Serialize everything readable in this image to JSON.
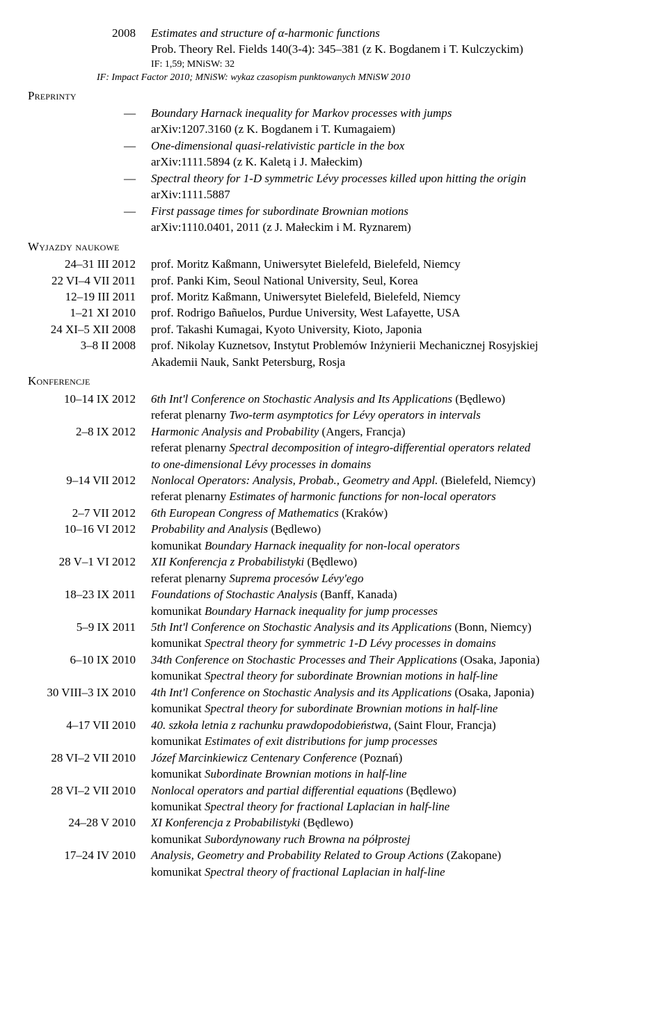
{
  "pub": {
    "year": "2008",
    "title": "Estimates and structure of α-harmonic functions",
    "ref": "Prob. Theory Rel. Fields 140(3-4): 345–381 (z K. Bogdanem i T. Kulczyckim)",
    "if": "IF: 1,59; MNiSW: 32",
    "note": "IF: Impact Factor 2010; MNiSW: wykaz czasopism punktowanych MNiSW 2010"
  },
  "sections": {
    "preprints": "Preprinty",
    "trips": "Wyjazdy naukowe",
    "conf": "Konferencje"
  },
  "preprints": [
    {
      "dash": "—",
      "title": "Boundary Harnack inequality for Markov processes with jumps",
      "sub": "arXiv:1207.3160 (z K. Bogdanem i T. Kumagaiem)"
    },
    {
      "dash": "—",
      "title": "One-dimensional quasi-relativistic particle in the box",
      "sub": "arXiv:1111.5894 (z K. Kaletą i J. Małeckim)"
    },
    {
      "dash": "—",
      "title": "Spectral theory for 1-D symmetric Lévy processes killed upon hitting the origin",
      "sub": "arXiv:1111.5887"
    },
    {
      "dash": "—",
      "title": "First passage times for subordinate Brownian motions",
      "sub": "arXiv:1110.0401, 2011 (z J. Małeckim i M. Ryznarem)"
    }
  ],
  "trips": [
    {
      "date": "24–31 III 2012",
      "who": "prof. Moritz Kaßmann, Uniwersytet Bielefeld, Bielefeld, Niemcy"
    },
    {
      "date": "22 VI–4 VII 2011",
      "who": "prof. Panki Kim, Seoul National University, Seul, Korea"
    },
    {
      "date": "12–19 III 2011",
      "who": "prof. Moritz Kaßmann, Uniwersytet Bielefeld, Bielefeld, Niemcy"
    },
    {
      "date": "1–21 XI 2010",
      "who": "prof. Rodrigo Bañuelos, Purdue University, West Lafayette, USA"
    },
    {
      "date": "24 XI–5 XII 2008",
      "who": "prof. Takashi Kumagai, Kyoto University, Kioto, Japonia"
    },
    {
      "date": "3–8 II 2008",
      "who": "prof. Nikolay Kuznetsov, Instytut Problemów Inżynierii Mechanicznej Rosyjskiej",
      "who2": "Akademii Nauk, Sankt Petersburg, Rosja"
    }
  ],
  "conf": [
    {
      "date": "10–14 IX 2012",
      "l": [
        {
          "t": "it",
          "v": "6th Int'l Conference on Stochastic Analysis and Its Applications"
        },
        {
          "t": "n",
          "v": " (Będlewo)"
        }
      ],
      "l2": [
        {
          "t": "n",
          "v": "referat plenarny "
        },
        {
          "t": "it",
          "v": "Two-term asymptotics for Lévy operators in intervals"
        }
      ]
    },
    {
      "date": "2–8 IX 2012",
      "l": [
        {
          "t": "it",
          "v": "Harmonic Analysis and Probability"
        },
        {
          "t": "n",
          "v": " (Angers, Francja)"
        }
      ],
      "l2": [
        {
          "t": "n",
          "v": "referat plenarny "
        },
        {
          "t": "it",
          "v": "Spectral decomposition of integro-differential operators related"
        }
      ],
      "l3": [
        {
          "t": "it",
          "v": "to one-dimensional Lévy processes in domains"
        }
      ]
    },
    {
      "date": "9–14 VII 2012",
      "l": [
        {
          "t": "it",
          "v": "Nonlocal Operators: Analysis, Probab., Geometry and Appl."
        },
        {
          "t": "n",
          "v": " (Bielefeld, Niemcy)"
        }
      ],
      "l2": [
        {
          "t": "n",
          "v": "referat plenarny "
        },
        {
          "t": "it",
          "v": "Estimates of harmonic functions for non-local operators"
        }
      ]
    },
    {
      "date": "2–7 VII 2012",
      "l": [
        {
          "t": "it",
          "v": "6th European Congress of Mathematics"
        },
        {
          "t": "n",
          "v": " (Kraków)"
        }
      ]
    },
    {
      "date": "10–16 VI 2012",
      "l": [
        {
          "t": "it",
          "v": "Probability and Analysis"
        },
        {
          "t": "n",
          "v": " (Będlewo)"
        }
      ],
      "l2": [
        {
          "t": "n",
          "v": "komunikat "
        },
        {
          "t": "it",
          "v": "Boundary Harnack inequality for non-local operators"
        }
      ]
    },
    {
      "date": "28 V–1 VI 2012",
      "l": [
        {
          "t": "it",
          "v": "XII Konferencja z Probabilistyki"
        },
        {
          "t": "n",
          "v": " (Będlewo)"
        }
      ],
      "l2": [
        {
          "t": "n",
          "v": "referat plenarny "
        },
        {
          "t": "it",
          "v": "Suprema procesów Lévy'ego"
        }
      ]
    },
    {
      "date": "18–23 IX 2011",
      "l": [
        {
          "t": "it",
          "v": "Foundations of Stochastic Analysis"
        },
        {
          "t": "n",
          "v": " (Banff, Kanada)"
        }
      ],
      "l2": [
        {
          "t": "n",
          "v": "komunikat "
        },
        {
          "t": "it",
          "v": "Boundary Harnack inequality for jump processes"
        }
      ]
    },
    {
      "date": "5–9 IX 2011",
      "l": [
        {
          "t": "it",
          "v": "5th Int'l Conference on Stochastic Analysis and its Applications"
        },
        {
          "t": "n",
          "v": " (Bonn, Niemcy)"
        }
      ],
      "l2": [
        {
          "t": "n",
          "v": "komunikat "
        },
        {
          "t": "it",
          "v": "Spectral theory for symmetric 1-D Lévy processes in domains"
        }
      ]
    },
    {
      "date": "6–10 IX 2010",
      "l": [
        {
          "t": "it",
          "v": "34th Conference on Stochastic Processes and Their Applications"
        },
        {
          "t": "n",
          "v": " (Osaka, Japonia)"
        }
      ],
      "l2": [
        {
          "t": "n",
          "v": "komunikat "
        },
        {
          "t": "it",
          "v": "Spectral theory for subordinate Brownian motions in half-line"
        }
      ]
    },
    {
      "date": "30 VIII–3 IX 2010",
      "l": [
        {
          "t": "it",
          "v": "4th Int'l Conference on Stochastic Analysis and its Applications"
        },
        {
          "t": "n",
          "v": " (Osaka, Japonia)"
        }
      ],
      "l2": [
        {
          "t": "n",
          "v": "komunikat "
        },
        {
          "t": "it",
          "v": "Spectral theory for subordinate Brownian motions in half-line"
        }
      ]
    },
    {
      "date": "4–17 VII 2010",
      "l": [
        {
          "t": "it",
          "v": "40. szkoła letnia z rachunku prawdopodobieństwa"
        },
        {
          "t": "n",
          "v": ", (Saint Flour, Francja)"
        }
      ],
      "l2": [
        {
          "t": "n",
          "v": "komunikat "
        },
        {
          "t": "it",
          "v": "Estimates of exit distributions for jump processes"
        }
      ]
    },
    {
      "date": "28 VI–2 VII 2010",
      "l": [
        {
          "t": "it",
          "v": "Józef Marcinkiewicz Centenary Conference"
        },
        {
          "t": "n",
          "v": " (Poznań)"
        }
      ],
      "l2": [
        {
          "t": "n",
          "v": "komunikat "
        },
        {
          "t": "it",
          "v": "Subordinate Brownian motions in half-line"
        }
      ]
    },
    {
      "date": "28 VI–2 VII 2010",
      "l": [
        {
          "t": "it",
          "v": "Nonlocal operators and partial differential equations"
        },
        {
          "t": "n",
          "v": " (Będlewo)"
        }
      ],
      "l2": [
        {
          "t": "n",
          "v": "komunikat "
        },
        {
          "t": "it",
          "v": "Spectral theory for fractional Laplacian in half-line"
        }
      ]
    },
    {
      "date": "24–28 V 2010",
      "l": [
        {
          "t": "it",
          "v": "XI Konferencja z Probabilistyki"
        },
        {
          "t": "n",
          "v": " (Będlewo)"
        }
      ],
      "l2": [
        {
          "t": "n",
          "v": "komunikat "
        },
        {
          "t": "it",
          "v": "Subordynowany ruch Browna na półprostej"
        }
      ]
    },
    {
      "date": "17–24 IV 2010",
      "l": [
        {
          "t": "it",
          "v": "Analysis, Geometry and Probability Related to Group Actions"
        },
        {
          "t": "n",
          "v": " (Zakopane)"
        }
      ],
      "l2": [
        {
          "t": "n",
          "v": "komunikat "
        },
        {
          "t": "it",
          "v": "Spectral theory of fractional Laplacian in half-line"
        }
      ]
    }
  ]
}
